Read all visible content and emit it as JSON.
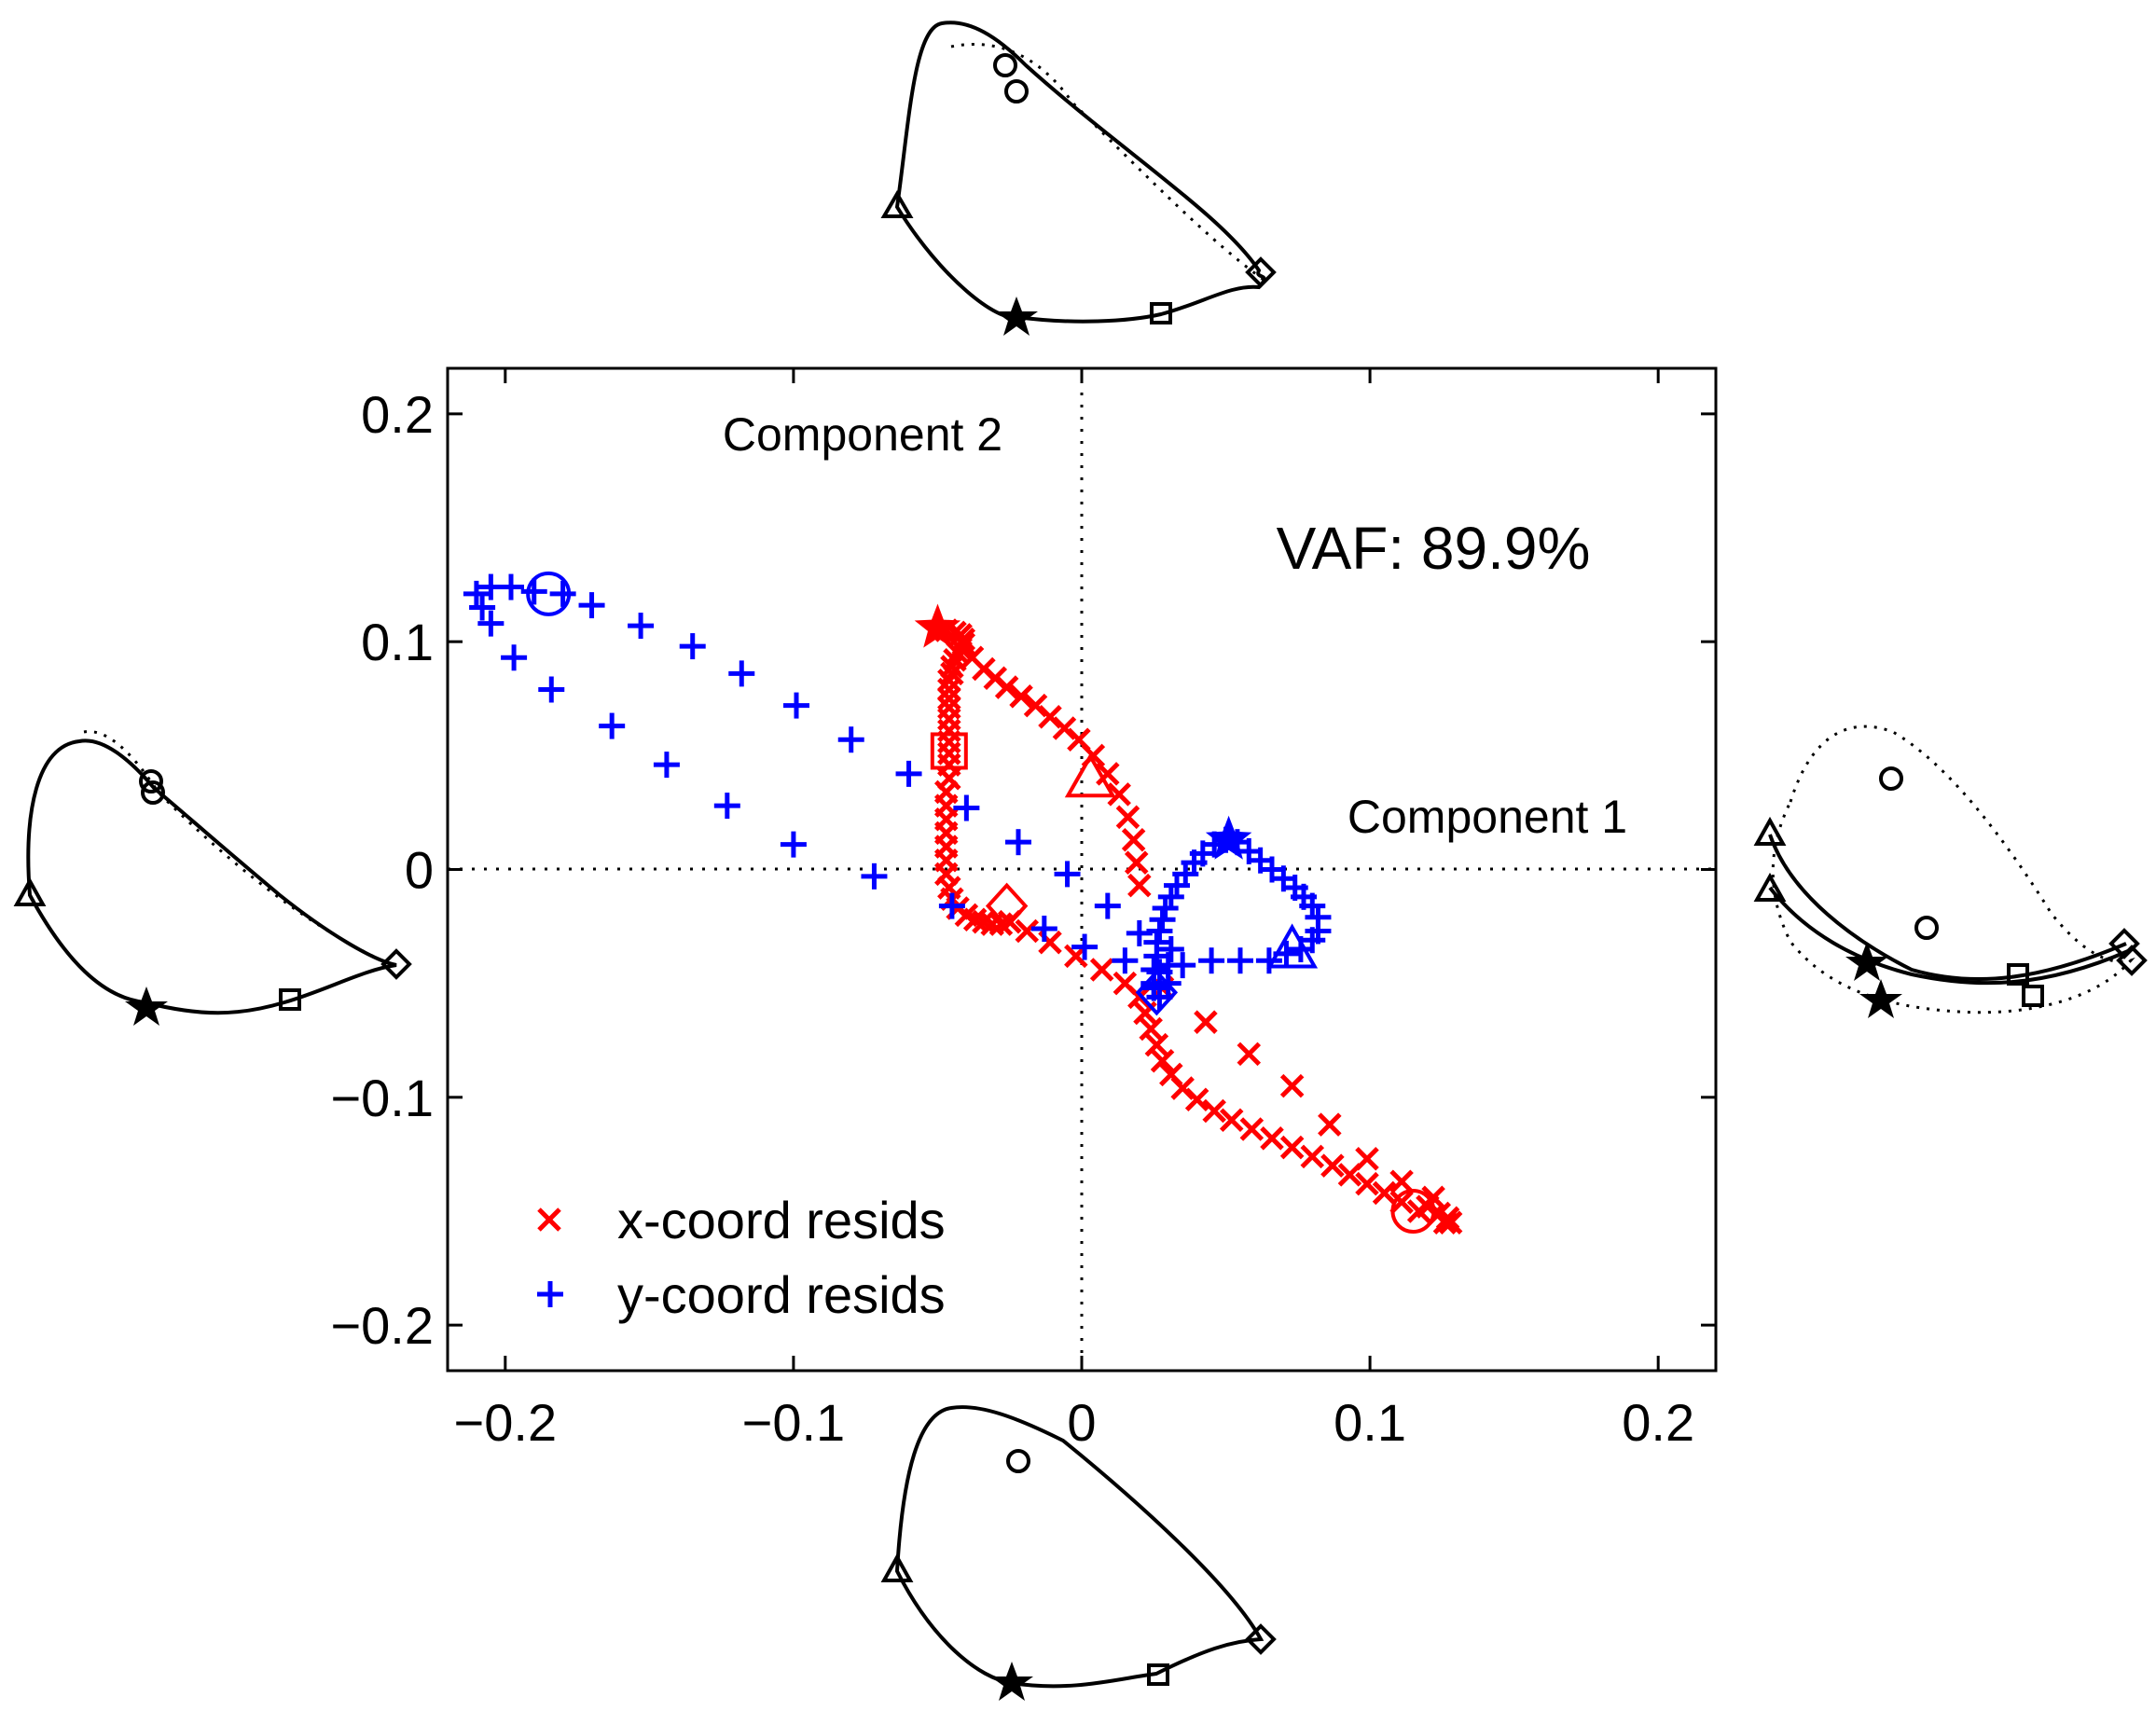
{
  "chart_data": {
    "type": "scatter",
    "title": "",
    "xlabel": "",
    "ylabel": "",
    "xlim": [
      -0.22,
      0.22
    ],
    "ylim": [
      -0.22,
      0.22
    ],
    "xticks": [
      -0.2,
      -0.1,
      0,
      0.1,
      0.2
    ],
    "yticks": [
      -0.2,
      -0.1,
      0,
      0.1,
      0.2
    ],
    "xtick_labels": [
      "−0.2",
      "−0.1",
      "0",
      "0.1",
      "0.2"
    ],
    "ytick_labels": [
      "−0.2",
      "−0.1",
      "0",
      "0.1",
      "0.2"
    ],
    "grid": false,
    "legend": "bottom-left",
    "annotations": {
      "component1": "Component 1",
      "component2": "Component 2",
      "vaf": "VAF: 89.9%"
    },
    "colors": {
      "x_series": "#ff0000",
      "y_series": "#0000ff",
      "outline": "#000000"
    },
    "series": [
      {
        "name": "x-coord resids",
        "marker": "x",
        "color": "#ff0000",
        "points": [
          [
            -0.047,
            0.105
          ],
          [
            -0.044,
            0.104
          ],
          [
            -0.042,
            0.103
          ],
          [
            -0.041,
            0.101
          ],
          [
            -0.041,
            0.099
          ],
          [
            -0.042,
            0.097
          ],
          [
            -0.043,
            0.095
          ],
          [
            -0.044,
            0.092
          ],
          [
            -0.045,
            0.089
          ],
          [
            -0.045,
            0.086
          ],
          [
            -0.046,
            0.083
          ],
          [
            -0.046,
            0.079
          ],
          [
            -0.046,
            0.075
          ],
          [
            -0.046,
            0.071
          ],
          [
            -0.046,
            0.066
          ],
          [
            -0.046,
            0.061
          ],
          [
            -0.046,
            0.056
          ],
          [
            -0.046,
            0.051
          ],
          [
            -0.046,
            0.046
          ],
          [
            -0.046,
            0.04
          ],
          [
            -0.047,
            0.034
          ],
          [
            -0.047,
            0.028
          ],
          [
            -0.047,
            0.022
          ],
          [
            -0.047,
            0.016
          ],
          [
            -0.047,
            0.01
          ],
          [
            -0.047,
            0.004
          ],
          [
            -0.047,
            -0.002
          ],
          [
            -0.046,
            -0.008
          ],
          [
            -0.045,
            -0.013
          ],
          [
            -0.043,
            -0.017
          ],
          [
            -0.04,
            -0.02
          ],
          [
            -0.037,
            -0.022
          ],
          [
            -0.034,
            -0.023
          ],
          [
            -0.031,
            -0.024
          ],
          [
            -0.028,
            -0.024
          ],
          [
            -0.025,
            -0.023
          ],
          [
            -0.038,
            0.093
          ],
          [
            -0.034,
            0.088
          ],
          [
            -0.03,
            0.084
          ],
          [
            -0.026,
            0.08
          ],
          [
            -0.021,
            0.076
          ],
          [
            -0.016,
            0.072
          ],
          [
            -0.011,
            0.067
          ],
          [
            -0.006,
            0.062
          ],
          [
            -0.001,
            0.057
          ],
          [
            0.004,
            0.05
          ],
          [
            0.009,
            0.042
          ],
          [
            0.013,
            0.033
          ],
          [
            0.016,
            0.023
          ],
          [
            0.018,
            0.013
          ],
          [
            0.019,
            0.003
          ],
          [
            0.02,
            -0.007
          ],
          [
            -0.019,
            -0.027
          ],
          [
            -0.011,
            -0.032
          ],
          [
            -0.002,
            -0.038
          ],
          [
            0.007,
            -0.044
          ],
          [
            0.015,
            -0.05
          ],
          [
            0.02,
            -0.056
          ],
          [
            0.022,
            -0.063
          ],
          [
            0.024,
            -0.07
          ],
          [
            0.026,
            -0.077
          ],
          [
            0.028,
            -0.084
          ],
          [
            0.031,
            -0.09
          ],
          [
            0.035,
            -0.096
          ],
          [
            0.04,
            -0.101
          ],
          [
            0.046,
            -0.106
          ],
          [
            0.052,
            -0.11
          ],
          [
            0.059,
            -0.114
          ],
          [
            0.066,
            -0.118
          ],
          [
            0.073,
            -0.122
          ],
          [
            0.08,
            -0.126
          ],
          [
            0.087,
            -0.13
          ],
          [
            0.093,
            -0.134
          ],
          [
            0.099,
            -0.138
          ],
          [
            0.105,
            -0.142
          ],
          [
            0.111,
            -0.146
          ],
          [
            0.117,
            -0.15
          ],
          [
            0.12,
            -0.148
          ],
          [
            0.124,
            -0.151
          ],
          [
            0.127,
            -0.153
          ],
          [
            0.128,
            -0.155
          ],
          [
            0.126,
            -0.155
          ],
          [
            0.122,
            -0.144
          ],
          [
            0.111,
            -0.137
          ],
          [
            0.099,
            -0.127
          ],
          [
            0.086,
            -0.112
          ],
          [
            0.073,
            -0.095
          ],
          [
            0.058,
            -0.081
          ],
          [
            0.043,
            -0.067
          ],
          [
            0.028,
            -0.052
          ]
        ],
        "special_markers": [
          {
            "marker": "star",
            "x": -0.05,
            "y": 0.106
          },
          {
            "marker": "square",
            "x": -0.046,
            "y": 0.052
          },
          {
            "marker": "triangle",
            "x": 0.003,
            "y": 0.039
          },
          {
            "marker": "diamond",
            "x": -0.026,
            "y": -0.016
          },
          {
            "marker": "circle",
            "x": 0.115,
            "y": -0.15
          }
        ]
      },
      {
        "name": "y-coord resids",
        "marker": "+",
        "color": "#0000ff",
        "points": [
          [
            -0.21,
            0.121
          ],
          [
            -0.205,
            0.124
          ],
          [
            -0.198,
            0.124
          ],
          [
            -0.19,
            0.122
          ],
          [
            -0.18,
            0.121
          ],
          [
            -0.17,
            0.116
          ],
          [
            -0.153,
            0.107
          ],
          [
            -0.135,
            0.098
          ],
          [
            -0.118,
            0.086
          ],
          [
            -0.099,
            0.072
          ],
          [
            -0.08,
            0.057
          ],
          [
            -0.06,
            0.042
          ],
          [
            -0.04,
            0.027
          ],
          [
            -0.022,
            0.012
          ],
          [
            -0.005,
            -0.002
          ],
          [
            0.009,
            -0.016
          ],
          [
            0.02,
            -0.028
          ],
          [
            -0.208,
            0.115
          ],
          [
            -0.205,
            0.108
          ],
          [
            -0.197,
            0.093
          ],
          [
            -0.184,
            0.079
          ],
          [
            -0.163,
            0.063
          ],
          [
            -0.144,
            0.046
          ],
          [
            -0.123,
            0.028
          ],
          [
            -0.1,
            0.011
          ],
          [
            -0.072,
            -0.003
          ],
          [
            -0.045,
            -0.016
          ],
          [
            -0.013,
            -0.026
          ],
          [
            0.001,
            -0.034
          ],
          [
            0.015,
            -0.04
          ],
          [
            0.025,
            -0.05
          ],
          [
            0.025,
            -0.044
          ],
          [
            0.026,
            -0.038
          ],
          [
            0.026,
            -0.032
          ],
          [
            0.027,
            -0.027
          ],
          [
            0.028,
            -0.022
          ],
          [
            0.029,
            -0.017
          ],
          [
            0.031,
            -0.012
          ],
          [
            0.033,
            -0.007
          ],
          [
            0.036,
            -0.002
          ],
          [
            0.039,
            0.003
          ],
          [
            0.042,
            0.007
          ],
          [
            0.046,
            0.011
          ],
          [
            0.05,
            0.013
          ],
          [
            0.054,
            0.012
          ],
          [
            0.058,
            0.008
          ],
          [
            0.062,
            0.004
          ],
          [
            0.066,
            0.0
          ],
          [
            0.07,
            -0.004
          ],
          [
            0.074,
            -0.008
          ],
          [
            0.077,
            -0.012
          ],
          [
            0.08,
            -0.016
          ],
          [
            0.082,
            -0.021
          ],
          [
            0.082,
            -0.027
          ],
          [
            0.08,
            -0.031
          ],
          [
            0.076,
            -0.035
          ],
          [
            0.071,
            -0.037
          ],
          [
            0.065,
            -0.04
          ],
          [
            0.055,
            -0.04
          ],
          [
            0.045,
            -0.04
          ],
          [
            0.035,
            -0.042
          ],
          [
            0.027,
            -0.045
          ],
          [
            0.025,
            -0.052
          ],
          [
            0.027,
            -0.056
          ],
          [
            0.03,
            -0.05
          ],
          [
            0.03,
            -0.042
          ],
          [
            0.031,
            -0.035
          ]
        ],
        "special_markers": [
          {
            "marker": "circle",
            "x": -0.185,
            "y": 0.121
          },
          {
            "marker": "star",
            "x": 0.051,
            "y": 0.013
          },
          {
            "marker": "triangle",
            "x": 0.073,
            "y": -0.036
          },
          {
            "marker": "diamond",
            "x": 0.026,
            "y": -0.054
          }
        ]
      }
    ]
  },
  "legend": {
    "x_label": "x-coord resids",
    "y_label": "y-coord resids"
  }
}
